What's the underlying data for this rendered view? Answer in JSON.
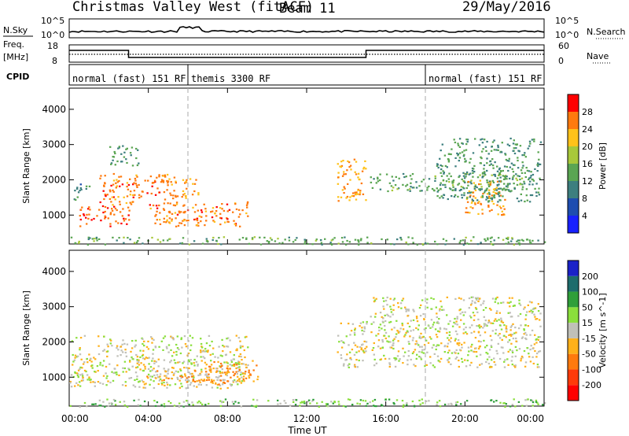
{
  "header": {
    "station": "Christmas Valley West (fitACF)",
    "beam": "Beam 11",
    "date": "29/May/2016"
  },
  "nsky": {
    "label": "N.Sky",
    "tick_top": "10^5",
    "tick_bottom": "10^0",
    "right_label": "N.Search",
    "right_top": "10^5",
    "right_bottom": "10^0"
  },
  "freq": {
    "label_line1": "Freq.",
    "label_line2": "[MHz]",
    "tick_top": "18",
    "tick_bottom": "8",
    "right_label": "Nave",
    "right_top": "60",
    "right_bottom": "0"
  },
  "cpid": {
    "label": "CPID",
    "modes": [
      {
        "label": "normal (fast) 151 RF",
        "start_h": 0
      },
      {
        "label": "themis 3300 RF",
        "start_h": 6
      },
      {
        "label": "normal (fast) 151 RF",
        "start_h": 18
      }
    ]
  },
  "x_axis": {
    "label": "Time UT",
    "ticks": [
      "00:00",
      "04:00",
      "08:00",
      "12:00",
      "16:00",
      "20:00",
      "00:00"
    ]
  },
  "power_panel": {
    "ylabel": "Slant Range [km]",
    "yticks": [
      "1000",
      "2000",
      "3000",
      "4000"
    ],
    "cbar_label": "Power [dB]",
    "cbar_ticks": [
      "4",
      "8",
      "12",
      "16",
      "20",
      "24",
      "28"
    ],
    "cbar_colors": [
      "#1820ff",
      "#1e4db0",
      "#3d7f7f",
      "#5aa552",
      "#a8c83a",
      "#ffc21a",
      "#ff7a0e",
      "#ff0000"
    ]
  },
  "velocity_panel": {
    "ylabel": "Slant Range [km]",
    "yticks": [
      "1000",
      "2000",
      "3000",
      "4000"
    ],
    "cbar_label": "Velocity [m s^-1]",
    "cbar_ticks": [
      "200",
      "100",
      "50",
      "15",
      "-15",
      "-50",
      "-100",
      "-200"
    ],
    "cbar_colors": [
      "#1a22c8",
      "#1d6c6c",
      "#2f9f3a",
      "#8adf3c",
      "#c0c0b8",
      "#ffb11a",
      "#ff7a0e",
      "#ff3a0a",
      "#ff0000"
    ]
  },
  "chart_data": [
    {
      "type": "heatmap",
      "title": "Power",
      "xlabel": "Time UT",
      "ylabel": "Slant Range [km]",
      "xlim": [
        0,
        24
      ],
      "ylim": [
        180,
        4600
      ],
      "clim": [
        0,
        30
      ],
      "unit": "dB",
      "blobs": [
        {
          "t": [
            0.5,
            3.0
          ],
          "r": [
            700,
            1300
          ],
          "value": 27
        },
        {
          "t": [
            1.5,
            5.5
          ],
          "r": [
            1300,
            2200
          ],
          "value": 26
        },
        {
          "t": [
            4.0,
            9.0
          ],
          "r": [
            700,
            1400
          ],
          "value": 26
        },
        {
          "t": [
            5.5,
            6.5
          ],
          "r": [
            1500,
            2100
          ],
          "value": 24
        },
        {
          "t": [
            0.2,
            1.0
          ],
          "r": [
            1400,
            1900
          ],
          "value": 10
        },
        {
          "t": [
            2.0,
            3.5
          ],
          "r": [
            2400,
            3000
          ],
          "value": 12
        },
        {
          "t": [
            13.5,
            15.0
          ],
          "r": [
            1400,
            2600
          ],
          "value": 24
        },
        {
          "t": [
            15.2,
            23.5
          ],
          "r": [
            1700,
            2200
          ],
          "value": 14
        },
        {
          "t": [
            20.0,
            22.0
          ],
          "r": [
            1000,
            2000
          ],
          "value": 24
        },
        {
          "t": [
            18.5,
            23.8
          ],
          "r": [
            1400,
            3200
          ],
          "value": 12
        },
        {
          "t": [
            0.0,
            24.0
          ],
          "r": [
            180,
            400
          ],
          "value": 14
        }
      ]
    },
    {
      "type": "heatmap",
      "title": "Velocity",
      "xlabel": "Time UT",
      "ylabel": "Slant Range [km]",
      "xlim": [
        0,
        24
      ],
      "ylim": [
        180,
        4600
      ],
      "clim": [
        -200,
        200
      ],
      "unit": "m s^-1",
      "blobs": [
        {
          "t": [
            0.0,
            9.0
          ],
          "r": [
            700,
            2200
          ],
          "value": 0
        },
        {
          "t": [
            6.5,
            9.5
          ],
          "r": [
            900,
            1500
          ],
          "value": -60
        },
        {
          "t": [
            3.5,
            8.0
          ],
          "r": [
            800,
            1300
          ],
          "value": -40
        },
        {
          "t": [
            13.5,
            15.0
          ],
          "r": [
            1300,
            2600
          ],
          "value": 0
        },
        {
          "t": [
            15.2,
            23.8
          ],
          "r": [
            1300,
            3300
          ],
          "value": 0
        },
        {
          "t": [
            0.0,
            24.0
          ],
          "r": [
            180,
            400
          ],
          "value": 40
        }
      ]
    }
  ]
}
